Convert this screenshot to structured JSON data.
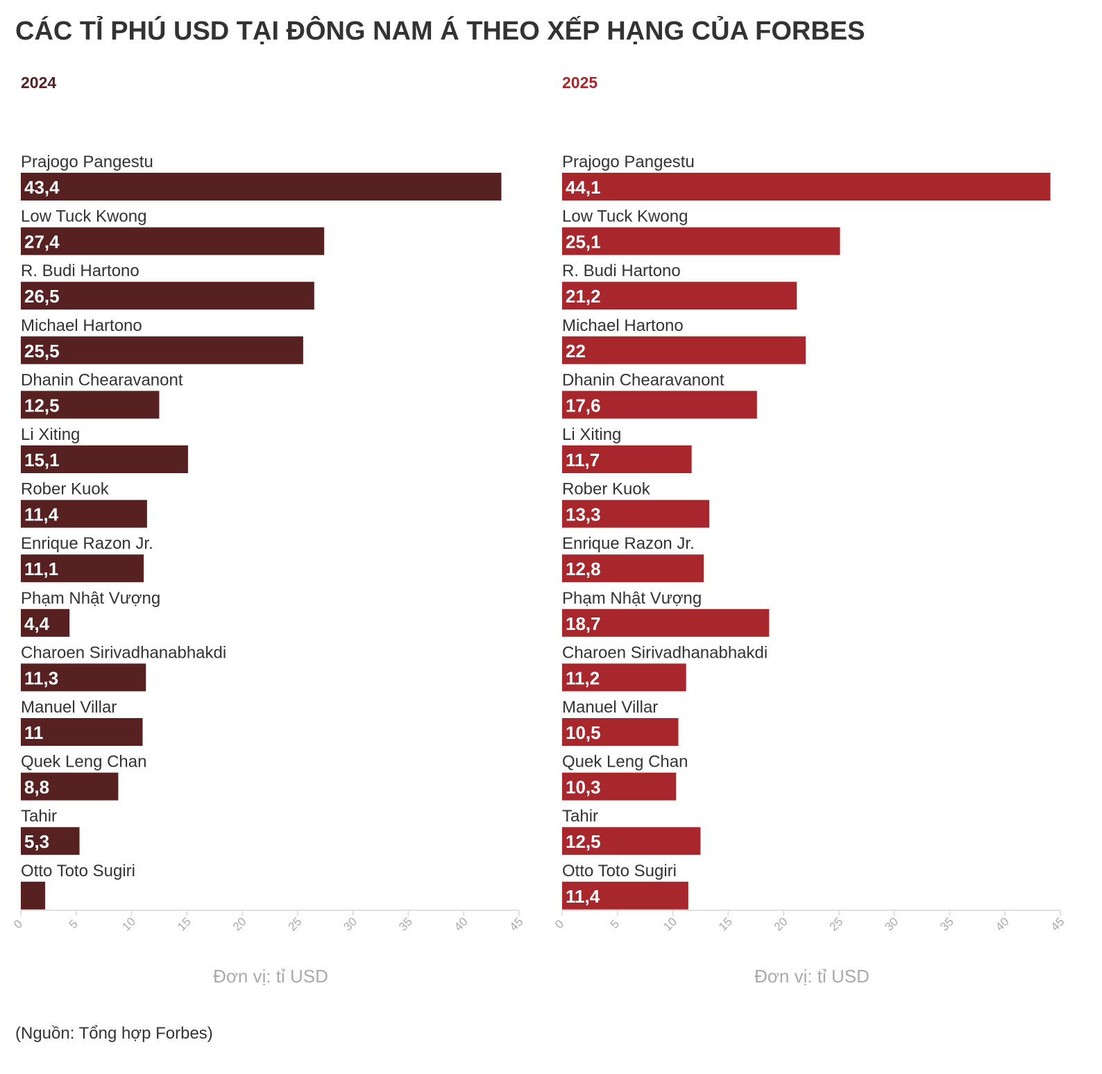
{
  "title": "CÁC TỈ PHÚ USD TẠI ĐÔNG NAM Á THEO XẾP HẠNG CỦA FORBES",
  "source": "(Nguồn: Tổng hợp Forbes)",
  "chart_data": [
    {
      "type": "bar",
      "orientation": "horizontal",
      "title": "2024",
      "color": "#572122",
      "xlabel": "Đơn vị: tỉ USD",
      "xlim": [
        0,
        45
      ],
      "xticks": [
        "0",
        "5",
        "10",
        "15",
        "20",
        "25",
        "30",
        "35",
        "40",
        "45"
      ],
      "categories": [
        "Prajogo Pangestu",
        "Low Tuck Kwong",
        "R. Budi Hartono",
        "Michael Hartono",
        "Dhanin Chearavanont",
        "Li Xiting",
        "Rober Kuok",
        "Enrique Razon Jr.",
        "Phạm Nhật Vượng",
        "Charoen Sirivadhanabhakdi",
        "Manuel Villar",
        "Quek  Leng  Chan",
        "Tahir",
        "Otto Toto Sugiri"
      ],
      "values": [
        43.4,
        27.4,
        26.5,
        25.5,
        12.5,
        15.1,
        11.4,
        11.1,
        4.4,
        11.3,
        11,
        8.8,
        5.3,
        2.2
      ],
      "value_labels": [
        "43,4",
        "27,4",
        "26,5",
        "25,5",
        "12,5",
        "15,1",
        "11,4",
        "11,1",
        "4,4",
        "11,3",
        "11",
        "8,8",
        "5,3",
        ""
      ]
    },
    {
      "type": "bar",
      "orientation": "horizontal",
      "title": "2025",
      "color": "#a8272d",
      "xlabel": "Đơn vị: tỉ USD",
      "xlim": [
        0,
        45
      ],
      "xticks": [
        "0",
        "5",
        "10",
        "15",
        "20",
        "25",
        "30",
        "35",
        "40",
        "45"
      ],
      "categories": [
        "Prajogo Pangestu",
        "Low Tuck Kwong",
        "R. Budi Hartono",
        "Michael Hartono",
        "Dhanin Chearavanont",
        "Li Xiting",
        "Rober Kuok",
        "Enrique Razon Jr.",
        "Phạm Nhật Vượng",
        "Charoen Sirivadhanabhakdi",
        "Manuel Villar",
        "Quek  Leng  Chan",
        "Tahir",
        "Otto Toto Sugiri"
      ],
      "values": [
        44.1,
        25.1,
        21.2,
        22,
        17.6,
        11.7,
        13.3,
        12.8,
        18.7,
        11.2,
        10.5,
        10.3,
        12.5,
        11.4
      ],
      "value_labels": [
        "44,1",
        "25,1",
        "21,2",
        "22",
        "17,6",
        "11,7",
        "13,3",
        "12,8",
        "18,7",
        "11,2",
        "10,5",
        "10,3",
        "12,5",
        "11,4"
      ]
    }
  ]
}
